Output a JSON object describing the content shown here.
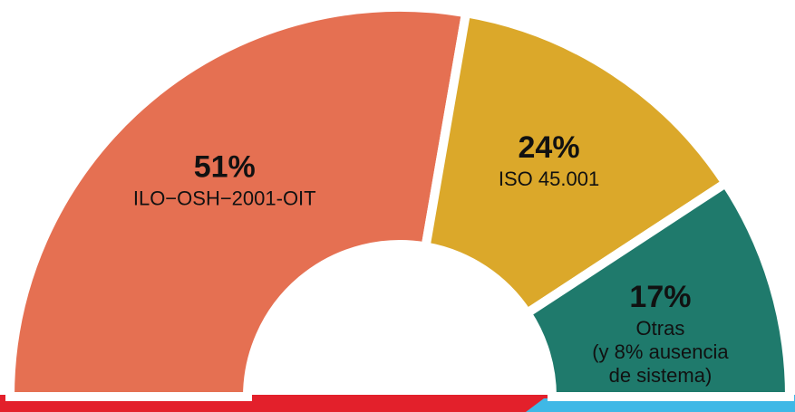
{
  "chart_data": {
    "type": "semi-donut",
    "categories": [
      "ILO−OSH−2001-OIT",
      "ISO 45.001",
      "Otras"
    ],
    "values": [
      51,
      24,
      17
    ],
    "value_labels": [
      "51%",
      "24%",
      "17%"
    ],
    "colors": [
      "#e57052",
      "#dba82a",
      "#1f7a6c"
    ],
    "note_lines": [
      "(y 8% ausencia",
      "de sistema)"
    ]
  }
}
